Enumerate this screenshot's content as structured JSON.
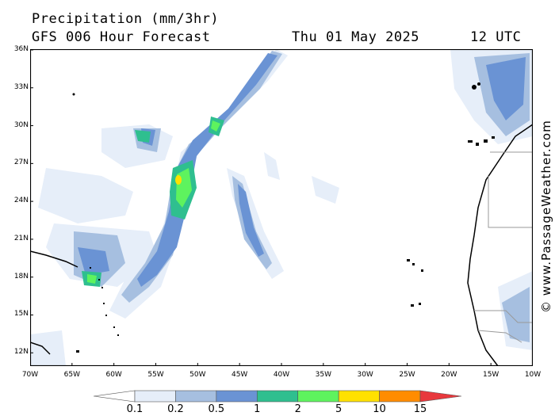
{
  "header": {
    "title": "Precipitation (mm/3hr)",
    "subtitle": "GFS 006 Hour Forecast",
    "datetime": "Thu 01 May 2025",
    "hour": "12 UTC"
  },
  "map": {
    "lat_labels": [
      "36N",
      "33N",
      "30N",
      "27N",
      "24N",
      "21N",
      "18N",
      "15N",
      "12N"
    ],
    "lon_labels": [
      "70W",
      "65W",
      "60W",
      "55W",
      "50W",
      "45W",
      "40W",
      "35W",
      "30W",
      "25W",
      "20W",
      "15W",
      "10W"
    ],
    "extent": {
      "lon_min": -70,
      "lon_max": -10,
      "lat_min": 10,
      "lat_max": 36
    },
    "colors": {
      "coast": "#000000",
      "border": "#999999",
      "frame": "#000000"
    }
  },
  "legend": {
    "labels": [
      "0.1",
      "0.2",
      "0.5",
      "1",
      "2",
      "5",
      "10",
      "15"
    ],
    "colors": [
      "#ffffff",
      "#e6eef9",
      "#a6bfe0",
      "#6a93d4",
      "#2fbf8f",
      "#5ef35e",
      "#ffe100",
      "#ff8c00",
      "#e8383d"
    ]
  },
  "credit": "© www.PassageWeather.com"
}
